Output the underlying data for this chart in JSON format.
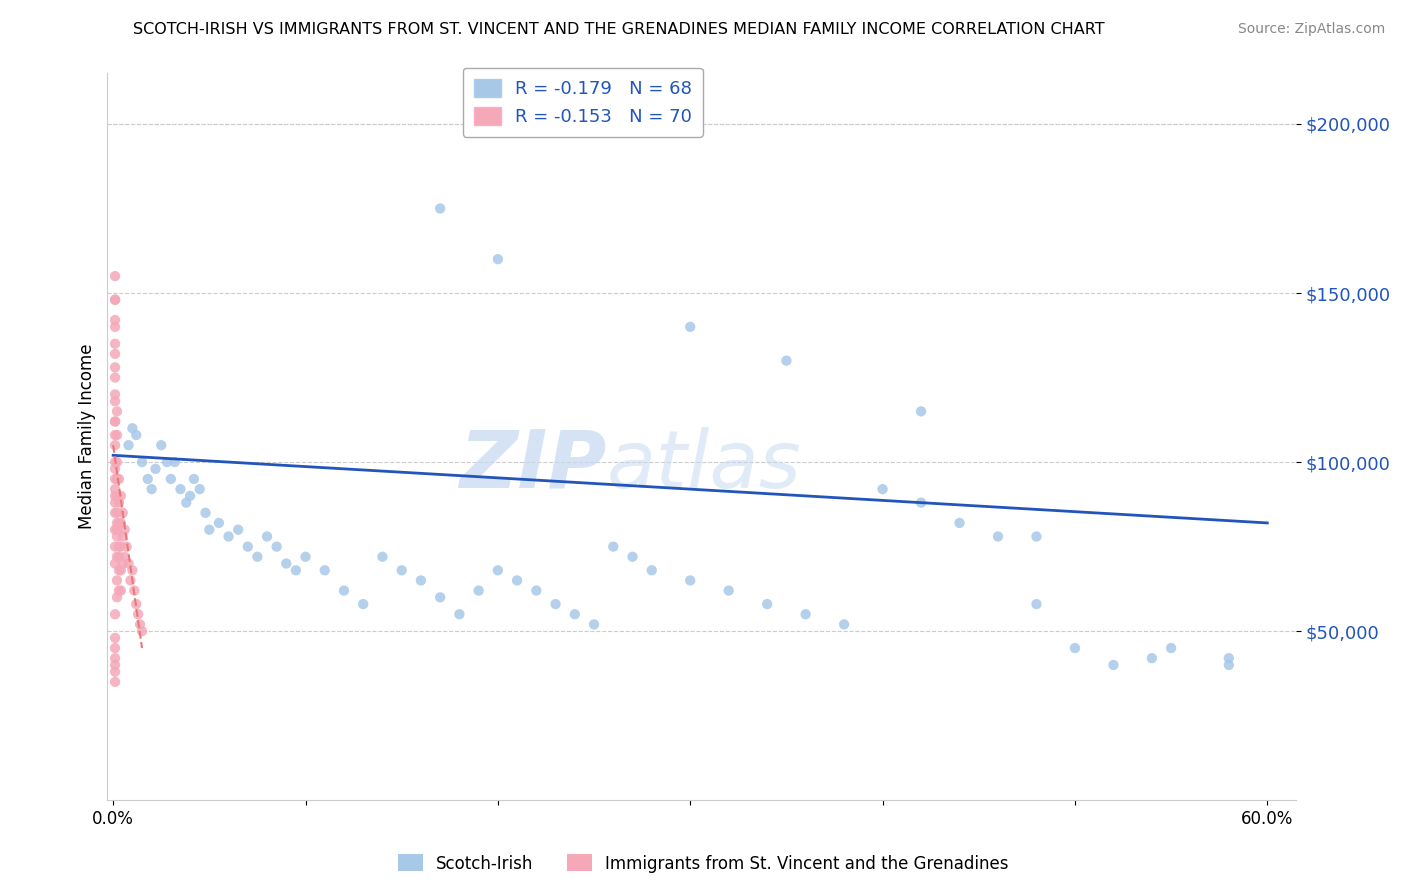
{
  "title": "SCOTCH-IRISH VS IMMIGRANTS FROM ST. VINCENT AND THE GRENADINES MEDIAN FAMILY INCOME CORRELATION CHART",
  "source": "Source: ZipAtlas.com",
  "ylabel": "Median Family Income",
  "ytick_labels": [
    "$50,000",
    "$100,000",
    "$150,000",
    "$200,000"
  ],
  "ytick_values": [
    50000,
    100000,
    150000,
    200000
  ],
  "ylim": [
    0,
    215000
  ],
  "xlim": [
    -0.003,
    0.615
  ],
  "legend_line1": "R = -0.179   N = 68",
  "legend_line2": "R = -0.153   N = 70",
  "blue_color": "#A8C8E8",
  "pink_color": "#F4A8B8",
  "trend_blue_color": "#2255BB",
  "trend_pink_color": "#E87878",
  "watermark_zip": "ZIP",
  "watermark_atlas": "atlas",
  "footer_blue": "Scotch-Irish",
  "footer_pink": "Immigrants from St. Vincent and the Grenadines",
  "blue_scatter_x": [
    0.008,
    0.01,
    0.012,
    0.015,
    0.018,
    0.02,
    0.022,
    0.025,
    0.028,
    0.03,
    0.032,
    0.035,
    0.038,
    0.04,
    0.042,
    0.045,
    0.048,
    0.05,
    0.055,
    0.06,
    0.065,
    0.07,
    0.075,
    0.08,
    0.085,
    0.09,
    0.095,
    0.1,
    0.11,
    0.12,
    0.13,
    0.14,
    0.15,
    0.16,
    0.17,
    0.18,
    0.19,
    0.2,
    0.21,
    0.22,
    0.23,
    0.24,
    0.25,
    0.26,
    0.27,
    0.28,
    0.3,
    0.32,
    0.34,
    0.36,
    0.38,
    0.4,
    0.42,
    0.44,
    0.46,
    0.48,
    0.5,
    0.52,
    0.55,
    0.58,
    0.17,
    0.2,
    0.3,
    0.35,
    0.42,
    0.48,
    0.54,
    0.58
  ],
  "blue_scatter_y": [
    105000,
    110000,
    108000,
    100000,
    95000,
    92000,
    98000,
    105000,
    100000,
    95000,
    100000,
    92000,
    88000,
    90000,
    95000,
    92000,
    85000,
    80000,
    82000,
    78000,
    80000,
    75000,
    72000,
    78000,
    75000,
    70000,
    68000,
    72000,
    68000,
    62000,
    58000,
    72000,
    68000,
    65000,
    60000,
    55000,
    62000,
    68000,
    65000,
    62000,
    58000,
    55000,
    52000,
    75000,
    72000,
    68000,
    65000,
    62000,
    58000,
    55000,
    52000,
    92000,
    88000,
    82000,
    78000,
    58000,
    45000,
    40000,
    45000,
    40000,
    175000,
    160000,
    140000,
    130000,
    115000,
    78000,
    42000,
    42000
  ],
  "pink_scatter_x": [
    0.001,
    0.001,
    0.001,
    0.001,
    0.001,
    0.001,
    0.001,
    0.001,
    0.001,
    0.001,
    0.001,
    0.001,
    0.001,
    0.001,
    0.001,
    0.002,
    0.002,
    0.002,
    0.002,
    0.002,
    0.002,
    0.002,
    0.002,
    0.002,
    0.003,
    0.003,
    0.003,
    0.003,
    0.003,
    0.003,
    0.004,
    0.004,
    0.004,
    0.004,
    0.005,
    0.005,
    0.005,
    0.006,
    0.006,
    0.007,
    0.008,
    0.009,
    0.01,
    0.011,
    0.012,
    0.013,
    0.014,
    0.015,
    0.002,
    0.001,
    0.001,
    0.001,
    0.001,
    0.003,
    0.004,
    0.002,
    0.001,
    0.001,
    0.001,
    0.001,
    0.001,
    0.001,
    0.001,
    0.001,
    0.001,
    0.001,
    0.001,
    0.002,
    0.001,
    0.001
  ],
  "pink_scatter_y": [
    155000,
    148000,
    140000,
    132000,
    125000,
    118000,
    112000,
    108000,
    100000,
    95000,
    90000,
    85000,
    80000,
    75000,
    70000,
    115000,
    108000,
    100000,
    95000,
    90000,
    85000,
    78000,
    72000,
    65000,
    95000,
    88000,
    82000,
    75000,
    68000,
    62000,
    90000,
    82000,
    75000,
    68000,
    85000,
    78000,
    70000,
    80000,
    72000,
    75000,
    70000,
    65000,
    68000,
    62000,
    58000,
    55000,
    52000,
    50000,
    60000,
    45000,
    40000,
    38000,
    35000,
    72000,
    62000,
    82000,
    88000,
    92000,
    98000,
    105000,
    112000,
    120000,
    128000,
    135000,
    142000,
    148000,
    42000,
    80000,
    55000,
    48000
  ],
  "blue_trend_x": [
    0.0,
    0.6
  ],
  "blue_trend_y": [
    102000,
    82000
  ],
  "pink_trend_x": [
    0.0,
    0.015
  ],
  "pink_trend_y": [
    105000,
    45000
  ],
  "background_color": "#FFFFFF",
  "grid_color": "#CCCCCC"
}
